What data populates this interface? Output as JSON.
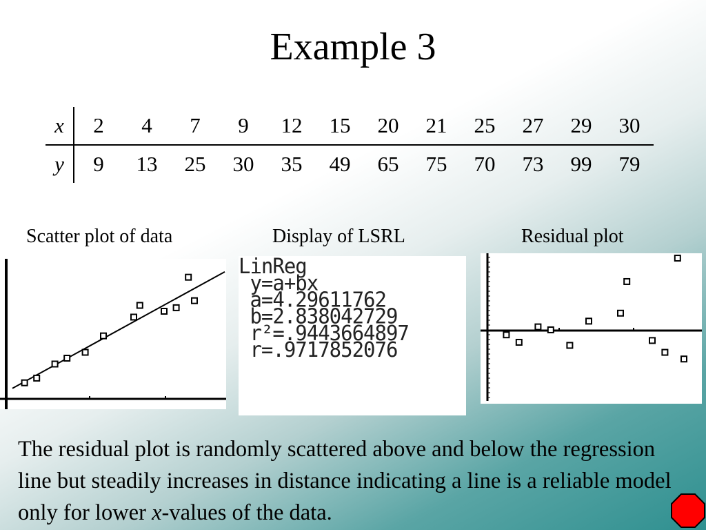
{
  "slide": {
    "title": "Example 3",
    "table": {
      "x_label": "x",
      "y_label": "y",
      "x_values": [
        "2",
        "4",
        "7",
        "9",
        "12",
        "15",
        "20",
        "21",
        "25",
        "27",
        "29",
        "30"
      ],
      "y_values": [
        "9",
        "13",
        "25",
        "30",
        "35",
        "49",
        "65",
        "75",
        "70",
        "73",
        "99",
        "79"
      ]
    },
    "captions": {
      "scatter": "Scatter plot of data",
      "lsrl": "Display of LSRL",
      "residual": "Residual plot"
    },
    "calculator_lines": [
      "LinReg",
      " y=a+bx",
      " a=4.29611762",
      " b=2.838042729",
      " r²=.9443664897",
      " r=.9717852076"
    ],
    "body": {
      "part1": "The residual plot is randomly scattered above and below the regression line but steadily increases in distance indicating a line is a reliable model only for lower ",
      "var": "x",
      "part2": "-values of the data."
    },
    "stop_icon_color": "#ff0000"
  },
  "chart_data": [
    {
      "type": "scatter",
      "title": "",
      "series": [
        {
          "x": [
            2,
            4,
            7,
            9,
            12,
            15,
            20,
            21,
            25,
            27,
            29,
            30
          ],
          "y": [
            9,
            13,
            25,
            30,
            35,
            49,
            65,
            75,
            70,
            73,
            99,
            79
          ]
        }
      ],
      "regression_line": {
        "a": 4.29611762,
        "b": 2.838042729
      },
      "grid": false
    },
    {
      "type": "scatter",
      "title": "",
      "series": [
        {
          "x": [
            2,
            4,
            7,
            9,
            12,
            15,
            20,
            21,
            25,
            27,
            29,
            30
          ],
          "y": [
            -0.97,
            -2.65,
            0.84,
            0.16,
            -3.35,
            2.13,
            3.94,
            11.1,
            -2.25,
            -4.93,
            16.4,
            -6.44
          ]
        }
      ],
      "grid": false
    }
  ]
}
